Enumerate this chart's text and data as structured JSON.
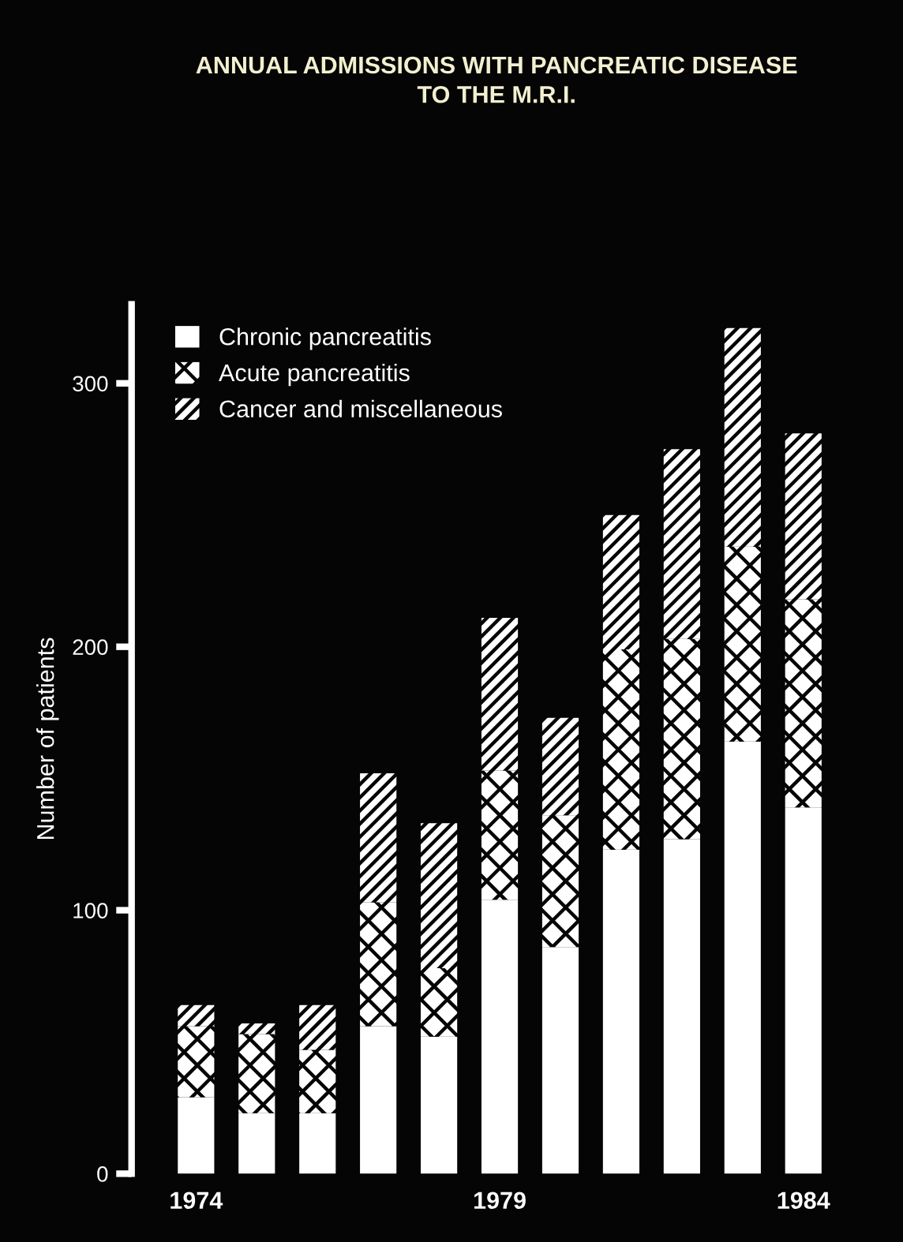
{
  "chart_data": {
    "type": "bar",
    "stacked": true,
    "title": "ANNUAL ADMISSIONS WITH PANCREATIC DISEASE\nTO THE M.R.I.",
    "ylabel": "Number of patients",
    "categories": [
      "1974",
      null,
      null,
      null,
      null,
      "1979",
      null,
      null,
      null,
      null,
      "1984"
    ],
    "series": [
      {
        "name": "Chronic pancreatitis",
        "color": "#ffffff",
        "values": [
          29,
          23,
          23,
          56,
          52,
          104,
          86,
          123,
          127,
          164,
          139
        ]
      },
      {
        "name": "Acute pancreatitis",
        "color": "#ffffff",
        "values": [
          27,
          30,
          24,
          47,
          26,
          49,
          50,
          76,
          76,
          74,
          79
        ]
      },
      {
        "name": "Cancer and miscellaneous",
        "color": "#ffffff",
        "values": [
          8,
          4,
          17,
          49,
          55,
          58,
          37,
          51,
          72,
          83,
          63
        ]
      }
    ],
    "ylim": [
      0,
      330
    ],
    "yticks": [
      0,
      100,
      200,
      300
    ],
    "legend": "top left",
    "grid": false
  }
}
